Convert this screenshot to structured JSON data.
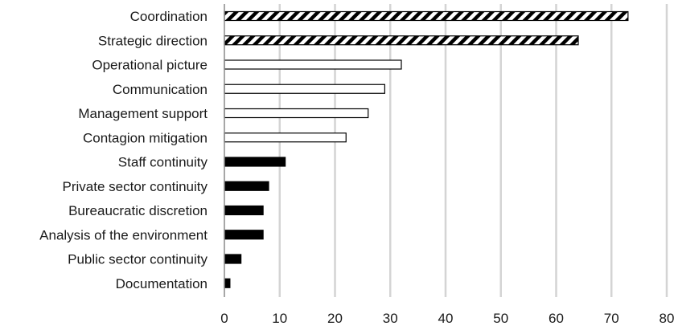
{
  "chart_data": {
    "type": "bar",
    "orientation": "horizontal",
    "title": "",
    "xlabel": "",
    "ylabel": "",
    "xlim": [
      0,
      80
    ],
    "x_ticks": [
      "0",
      "10",
      "20",
      "30",
      "40",
      "50",
      "60",
      "70",
      "80"
    ],
    "grid": "vertical",
    "legend": "none",
    "categories": [
      "Coordination",
      "Strategic direction",
      "Operational picture",
      "Communication",
      "Management support",
      "Contagion mitigation",
      "Staff continuity",
      "Private sector continuity",
      "Bureaucratic discretion",
      "Analysis of the environment",
      "Public sector continuity",
      "Documentation"
    ],
    "values": [
      73,
      64,
      32,
      29,
      26,
      22,
      11,
      8,
      7,
      7,
      3,
      1
    ],
    "fill_styles": [
      "hatched",
      "hatched",
      "outline",
      "outline",
      "outline",
      "outline",
      "solid",
      "solid",
      "solid",
      "solid",
      "solid",
      "solid"
    ],
    "colors": {
      "bar_stroke": "#000000",
      "bar_solid": "#000000",
      "bar_outline_fill": "#ffffff",
      "gridline": "#d4d4d4",
      "axis": "#8a8a8a",
      "text": "#1a1a1a"
    }
  }
}
